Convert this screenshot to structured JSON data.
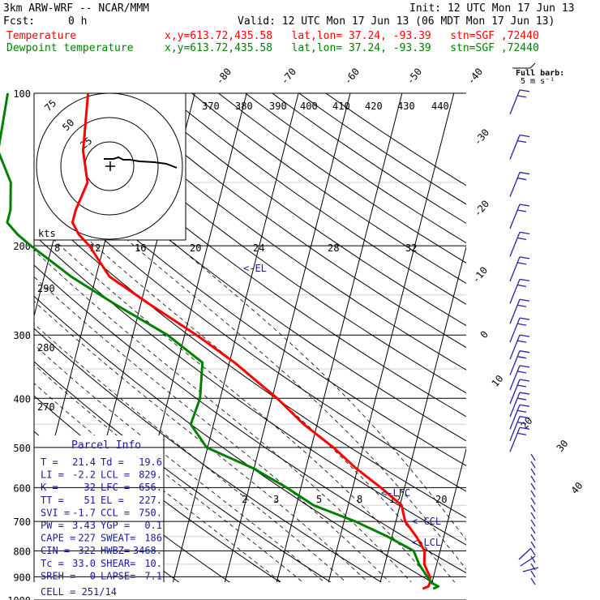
{
  "header": {
    "model": "3km ARW-WRF -- NCAR/MMM",
    "init": "Init: 12 UTC Mon 17 Jun 13",
    "fcst_label": "Fcst:",
    "fcst_value": "0 h",
    "valid": "Valid: 12 UTC Mon 17 Jun 13 (06 MDT Mon 17 Jun 13)",
    "temp_label": "Temperature",
    "dewp_label": "Dewpoint temperature",
    "temp_info": "x,y=613.72,435.58   lat,lon= 37.24, -93.39   stn=SGF ,72440",
    "dewp_info": "x,y=613.72,435.58   lat,lon= 37.24, -93.39   stn=SGF ,72440",
    "temp_color": "#ff0000",
    "dewp_color": "#008000"
  },
  "wind_barb_legend": {
    "line1": "Full barb:",
    "line2": "5 m s⁻¹"
  },
  "hodograph": {
    "units": "kts",
    "ring_labels": [
      "25",
      "50",
      "75"
    ]
  },
  "parcel_info": {
    "title": "Parcel Info",
    "rows": [
      [
        "T   =",
        "21.4",
        "Td =",
        "19.6"
      ],
      [
        "LI  =",
        "-2.2",
        "LCL =",
        "829."
      ],
      [
        "K   =",
        "32",
        "LFC =",
        "656."
      ],
      [
        "TT  =",
        "51",
        "EL  =",
        "227."
      ],
      [
        "SVI =",
        "-1.7",
        "CCL =",
        "750."
      ],
      [
        "PW  =",
        "3.43",
        "YGP =",
        "0.1"
      ],
      [
        "CAPE =",
        "227",
        "SWEAT=",
        "186"
      ],
      [
        "CIN =",
        "-322",
        "HWBZ=",
        "3468."
      ],
      [
        "Tc  =",
        "33.0",
        "SHEAR=",
        "10."
      ],
      [
        "SREH =",
        "0",
        "LAPSE=",
        "7.1"
      ]
    ],
    "cell": "CELL = 251/14"
  },
  "level_labels": {
    "el": "<-EL",
    "lfc": "<-LFC",
    "ccl": "<-CCL",
    "lcl": "<-LCL"
  },
  "chart_data": {
    "type": "line",
    "title": "",
    "ylabel": "",
    "xlabel": "",
    "y_axis": {
      "scale": "log",
      "ylim": [
        1000,
        100
      ],
      "ticks": [
        100,
        200,
        300,
        400,
        500,
        600,
        700,
        800,
        900,
        1000
      ]
    },
    "isotherm_labels": [
      -80,
      -70,
      -60,
      -50,
      -40,
      -30,
      -20,
      -10,
      0,
      10,
      20,
      30,
      40
    ],
    "theta_labels_top": [
      370,
      380,
      390,
      400,
      410,
      420,
      430,
      440
    ],
    "mixing_ratio_labels_mid": [
      8,
      12,
      16,
      20,
      24,
      28,
      32
    ],
    "theta_labels_left": [
      290,
      280,
      270
    ],
    "mixing_ratio_labels_low": [
      2,
      3,
      5,
      8,
      12,
      20
    ],
    "series": [
      {
        "name": "Temperature",
        "points": [
          [
            100,
            -70.6
          ],
          [
            130,
            -68.7
          ],
          [
            150,
            -66.3
          ],
          [
            170,
            -67.2
          ],
          [
            180,
            -67.2
          ],
          [
            190,
            -65.4
          ],
          [
            200,
            -62.8
          ],
          [
            230,
            -57.4
          ],
          [
            260,
            -48.5
          ],
          [
            300,
            -37.7
          ],
          [
            340,
            -29.0
          ],
          [
            400,
            -19.0
          ],
          [
            450,
            -12.6
          ],
          [
            500,
            -5.7
          ],
          [
            550,
            -0.3
          ],
          [
            600,
            5.4
          ],
          [
            650,
            10.3
          ],
          [
            700,
            11.8
          ],
          [
            750,
            14.7
          ],
          [
            800,
            17.0
          ],
          [
            850,
            17.6
          ],
          [
            900,
            19.3
          ],
          [
            925,
            19.6
          ],
          [
            940,
            19.5
          ],
          [
            950,
            18.5
          ]
        ]
      },
      {
        "name": "Dewpoint temperature",
        "points": [
          [
            100,
            -86.1
          ],
          [
            130,
            -85.1
          ],
          [
            150,
            -81.1
          ],
          [
            170,
            -79.8
          ],
          [
            180,
            -79.8
          ],
          [
            190,
            -77.2
          ],
          [
            200,
            -74.1
          ],
          [
            230,
            -64.8
          ],
          [
            260,
            -55.2
          ],
          [
            300,
            -43.3
          ],
          [
            340,
            -35.2
          ],
          [
            400,
            -33.9
          ],
          [
            450,
            -34.4
          ],
          [
            500,
            -30.2
          ],
          [
            550,
            -20.1
          ],
          [
            600,
            -12.8
          ],
          [
            650,
            -6.7
          ],
          [
            700,
            2.2
          ],
          [
            750,
            9.2
          ],
          [
            800,
            14.9
          ],
          [
            850,
            16.6
          ],
          [
            900,
            18.8
          ],
          [
            925,
            19.9
          ],
          [
            940,
            21.4
          ],
          [
            950,
            20.5
          ]
        ]
      }
    ]
  }
}
